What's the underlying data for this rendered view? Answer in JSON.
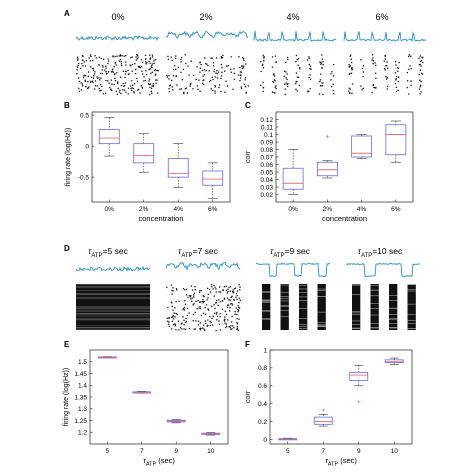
{
  "panels": {
    "A": {
      "label": "A",
      "conditions": [
        "0%",
        "2%",
        "4%",
        "6%"
      ]
    },
    "D": {
      "label": "D",
      "conditions": [
        {
          "tau": "τ",
          "sub": "ATP",
          "rest": "=5 sec"
        },
        {
          "tau": "τ",
          "sub": "ATP",
          "rest": "=7 sec"
        },
        {
          "tau": "τ",
          "sub": "ATP",
          "rest": "=9 sec"
        },
        {
          "tau": "τ",
          "sub": "ATP",
          "rest": "=10 sec"
        }
      ]
    }
  },
  "colors": {
    "trace": "#2a8fc4",
    "box": "#6a6ad8",
    "median": "#e0707a",
    "outlier": "#e0707a",
    "axis": "#222222"
  },
  "chart_data": [
    {
      "id": "B",
      "panel_label": "B",
      "type": "box",
      "categories": [
        "0%",
        "2%",
        "4%",
        "6%"
      ],
      "xlabel": "concentration",
      "ylabel": "firing rate (log(Hz))",
      "ylim": [
        -0.9,
        0.55
      ],
      "yticks": [
        -0.5,
        0,
        0.5
      ],
      "ytick_labels": [
        "-0.5",
        "0",
        "0.5"
      ],
      "boxes": [
        {
          "min": -0.16,
          "q1": 0.04,
          "median": 0.13,
          "q3": 0.27,
          "max": 0.46,
          "outliers": []
        },
        {
          "min": -0.42,
          "q1": -0.27,
          "median": -0.15,
          "q3": 0.04,
          "max": 0.2,
          "outliers": []
        },
        {
          "min": -0.67,
          "q1": -0.5,
          "median": -0.44,
          "q3": -0.2,
          "max": 0.04,
          "outliers": []
        },
        {
          "min": -0.84,
          "q1": -0.63,
          "median": -0.53,
          "q3": -0.4,
          "max": -0.27,
          "outliers": []
        }
      ]
    },
    {
      "id": "C",
      "panel_label": "C",
      "type": "box",
      "categories": [
        "0%",
        "2%",
        "4%",
        "6%"
      ],
      "xlabel": "concentration",
      "ylabel": "corr",
      "ylim": [
        0.01,
        0.13
      ],
      "yticks": [
        0.02,
        0.03,
        0.04,
        0.05,
        0.06,
        0.07,
        0.08,
        0.09,
        0.1,
        0.11,
        0.12
      ],
      "ytick_labels": [
        "0.02",
        "0.03",
        "0.04",
        "0.05",
        "0.06",
        "0.07",
        "0.08",
        "0.09",
        "0.1",
        "0.11",
        "0.12"
      ],
      "boxes": [
        {
          "min": 0.02,
          "q1": 0.027,
          "median": 0.035,
          "q3": 0.055,
          "max": 0.08,
          "outliers": []
        },
        {
          "min": 0.042,
          "q1": 0.045,
          "median": 0.053,
          "q3": 0.063,
          "max": 0.065,
          "outliers": [
            0.097
          ]
        },
        {
          "min": 0.068,
          "q1": 0.07,
          "median": 0.075,
          "q3": 0.098,
          "max": 0.1,
          "outliers": []
        },
        {
          "min": 0.063,
          "q1": 0.073,
          "median": 0.1,
          "q3": 0.113,
          "max": 0.118,
          "outliers": []
        }
      ]
    },
    {
      "id": "E",
      "panel_label": "E",
      "type": "box",
      "categories": [
        "5",
        "7",
        "9",
        "10"
      ],
      "xlabel_main": "τ",
      "xlabel_sub": "ATP",
      "xlabel_rest": " (sec)",
      "ylabel": "firing rate (log(Hz))",
      "ylim": [
        1.15,
        1.55
      ],
      "yticks": [
        1.2,
        1.25,
        1.3,
        1.35,
        1.4,
        1.45,
        1.5
      ],
      "ytick_labels": [
        "1.2",
        "1.25",
        "1.3",
        "1.35",
        "1.4",
        "1.45",
        "1.5"
      ],
      "boxes": [
        {
          "min": 1.518,
          "q1": 1.519,
          "median": 1.52,
          "q3": 1.521,
          "max": 1.522,
          "outliers": []
        },
        {
          "min": 1.366,
          "q1": 1.368,
          "median": 1.37,
          "q3": 1.372,
          "max": 1.374,
          "outliers": []
        },
        {
          "min": 1.24,
          "q1": 1.244,
          "median": 1.248,
          "q3": 1.251,
          "max": 1.254,
          "outliers": []
        },
        {
          "min": 1.188,
          "q1": 1.191,
          "median": 1.194,
          "q3": 1.196,
          "max": 1.199,
          "outliers": []
        }
      ]
    },
    {
      "id": "F",
      "panel_label": "F",
      "type": "box",
      "categories": [
        "5",
        "7",
        "9",
        "10"
      ],
      "xlabel_main": "τ",
      "xlabel_sub": "ATP",
      "xlabel_rest": " (sec)",
      "ylabel": "corr",
      "ylim": [
        -0.05,
        1.0
      ],
      "yticks": [
        0,
        0.2,
        0.4,
        0.6,
        0.8,
        1
      ],
      "ytick_labels": [
        "0",
        "0.2",
        "0.4",
        "0.6",
        "0.8",
        "1"
      ],
      "boxes": [
        {
          "min": 0.0,
          "q1": 0.0,
          "median": 0.005,
          "q3": 0.01,
          "max": 0.015,
          "outliers": []
        },
        {
          "min": 0.15,
          "q1": 0.17,
          "median": 0.2,
          "q3": 0.25,
          "max": 0.28,
          "outliers": [
            0.33
          ]
        },
        {
          "min": 0.6,
          "q1": 0.66,
          "median": 0.72,
          "q3": 0.75,
          "max": 0.83,
          "outliers": [
            0.42
          ]
        },
        {
          "min": 0.84,
          "q1": 0.86,
          "median": 0.87,
          "q3": 0.89,
          "max": 0.91,
          "outliers": []
        }
      ]
    }
  ]
}
